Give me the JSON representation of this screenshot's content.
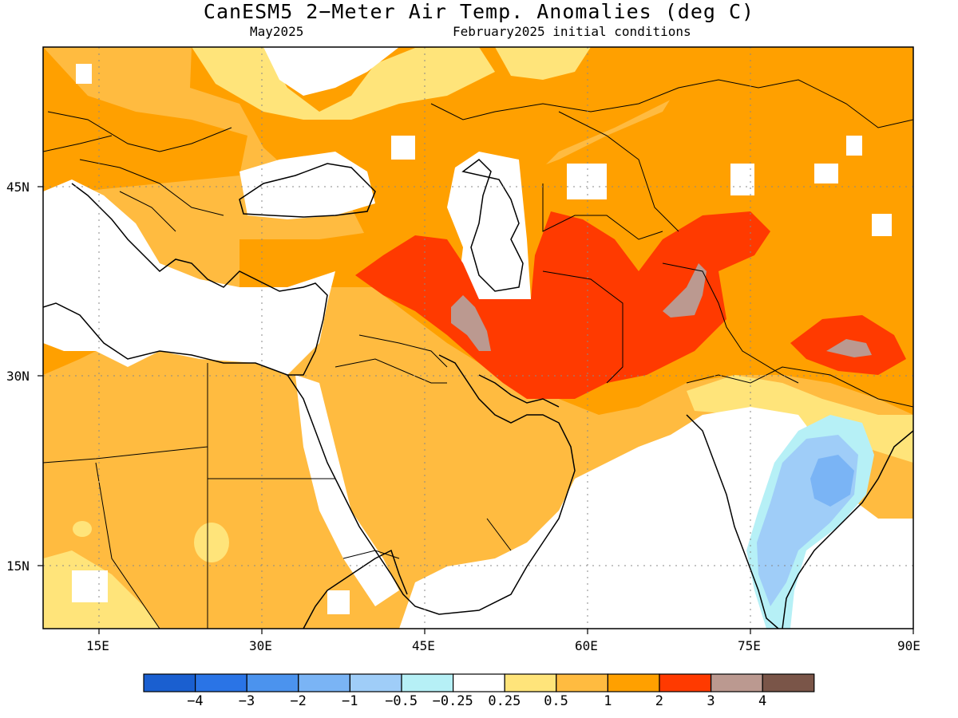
{
  "title": "CanESM5 2−Meter Air Temp. Anomalies (deg C)",
  "valid_label": "May2025",
  "ic_label": "February2025 initial conditions",
  "axes": {
    "lon_ticks": [
      "15E",
      "30E",
      "45E",
      "60E",
      "75E",
      "90E"
    ],
    "lat_ticks": [
      "45N",
      "30N",
      "15N"
    ]
  },
  "colorbar": {
    "colors": [
      "#1a5fd0",
      "#2a74e6",
      "#4b93ee",
      "#7ab4f5",
      "#9fcdf8",
      "#b6f0f6",
      "#ffffff",
      "#ffe47a",
      "#ffbb40",
      "#ffa000",
      "#ff3a00",
      "#bb9990",
      "#7a5548"
    ],
    "labels": [
      "−4",
      "−3",
      "−2",
      "−1",
      "−0.5",
      "−0.25",
      "0.25",
      "0.5",
      "1",
      "2",
      "3",
      "4"
    ]
  },
  "legend_colors": {
    "white": "#ffffff",
    "yellow": "#ffe47a",
    "lightorange": "#ffbb40",
    "orange": "#ffa000",
    "red": "#ff3a00",
    "rose": "#bb9990",
    "cyan": "#b6f0f6",
    "lightblue": "#9fcdf8",
    "blue": "#7ab4f5"
  }
}
